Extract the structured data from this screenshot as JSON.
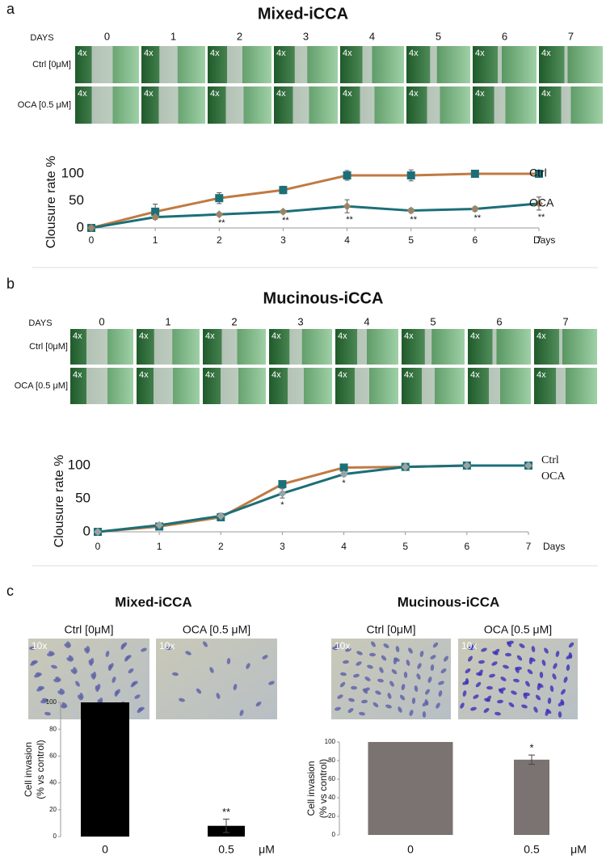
{
  "chart_data": [
    {
      "type": "line",
      "panel": "a",
      "title": "Mixed-iCCA",
      "image_grid": {
        "days_label": "DAYS",
        "days": [
          0,
          1,
          2,
          3,
          4,
          5,
          6,
          7
        ],
        "rows": [
          "Ctrl [0μM]",
          "OCA [0.5 μM]"
        ],
        "magnification": "4x"
      },
      "ylabel": "Clousure rate %",
      "xlabel": "Days",
      "x": [
        0,
        1,
        2,
        3,
        4,
        5,
        6,
        7
      ],
      "xlim": [
        0,
        7
      ],
      "xticks": [
        0,
        1,
        2,
        3,
        4,
        5,
        6,
        7
      ],
      "ylim": [
        0,
        100
      ],
      "yticks": [
        0,
        50,
        100
      ],
      "series": [
        {
          "name": "Ctrl",
          "color": "#c07a42",
          "marker_color": "#1b6f78",
          "marker": "square",
          "values": [
            0,
            30,
            55,
            70,
            97,
            97,
            100,
            100
          ],
          "errors": [
            5,
            14,
            10,
            7,
            9,
            10,
            3,
            3
          ]
        },
        {
          "name": "OCA",
          "color": "#1b6f78",
          "marker_color": "#9c8466",
          "marker": "diamond",
          "values": [
            0,
            20,
            25,
            30,
            40,
            32,
            35,
            45
          ],
          "errors": [
            3,
            3,
            3,
            3,
            12,
            4,
            4,
            12
          ]
        }
      ],
      "annotations": [
        {
          "x": 2,
          "text": "**"
        },
        {
          "x": 3,
          "text": "**"
        },
        {
          "x": 4,
          "text": "**"
        },
        {
          "x": 5,
          "text": "**"
        },
        {
          "x": 6,
          "text": "**"
        },
        {
          "x": 7,
          "text": "**"
        }
      ]
    },
    {
      "type": "line",
      "panel": "b",
      "title": "Mucinous-iCCA",
      "image_grid": {
        "days_label": "DAYS",
        "days": [
          0,
          1,
          2,
          3,
          4,
          5,
          6,
          7
        ],
        "rows": [
          "Ctrl [0μM]",
          "OCA [0.5 μM]"
        ],
        "magnification": "4x"
      },
      "ylabel": "Clousure rate %",
      "xlabel": "Days",
      "x": [
        0,
        1,
        2,
        3,
        4,
        5,
        6,
        7
      ],
      "xlim": [
        0,
        7
      ],
      "xticks": [
        0,
        1,
        2,
        3,
        4,
        5,
        6,
        7
      ],
      "ylim": [
        0,
        100
      ],
      "yticks": [
        0,
        50,
        100
      ],
      "series": [
        {
          "name": "Ctrl",
          "color": "#c07a42",
          "marker_color": "#1b6f78",
          "marker": "square",
          "values": [
            0,
            8,
            22,
            72,
            97,
            98,
            100,
            100
          ],
          "errors": [
            2,
            3,
            3,
            3,
            2,
            1,
            1,
            1
          ]
        },
        {
          "name": "OCA",
          "color": "#1b6f78",
          "marker_color": "#9aa3a3",
          "marker": "diamond",
          "values": [
            0,
            10,
            24,
            58,
            87,
            98,
            100,
            100
          ],
          "errors": [
            2,
            3,
            4,
            7,
            3,
            1,
            1,
            1
          ]
        }
      ],
      "annotations": [
        {
          "x": 3,
          "text": "*"
        },
        {
          "x": 4,
          "text": "*"
        }
      ]
    },
    {
      "type": "bar",
      "panel": "c",
      "title": "Mixed-iCCA",
      "images": {
        "labels": [
          "Ctrl [0μM]",
          "OCA [0.5 μM]"
        ],
        "magnification": "10x"
      },
      "ylabel": [
        "Cell invasion",
        "(% vs control)"
      ],
      "unit": "μM",
      "categories": [
        "0",
        "0.5"
      ],
      "values": [
        100,
        8
      ],
      "errors": [
        0,
        5
      ],
      "color": "#000000",
      "ylim": [
        0,
        100
      ],
      "yticks": [
        0,
        20,
        40,
        60,
        80,
        100
      ],
      "annotations": [
        {
          "index": 1,
          "text": "**"
        }
      ]
    },
    {
      "type": "bar",
      "title": "Mucinous-iCCA",
      "images": {
        "labels": [
          "Ctrl [0μM]",
          "OCA [0.5 μM]"
        ],
        "magnification": "10x"
      },
      "ylabel": [
        "Cell invasion",
        "(% vs control)"
      ],
      "unit": "μM",
      "categories": [
        "0",
        "0.5"
      ],
      "values": [
        100,
        81
      ],
      "errors": [
        0,
        5
      ],
      "color": "#7b7372",
      "ylim": [
        0,
        100
      ],
      "yticks": [
        0,
        20,
        40,
        60,
        80,
        100
      ],
      "annotations": [
        {
          "index": 1,
          "text": "*"
        }
      ]
    }
  ]
}
